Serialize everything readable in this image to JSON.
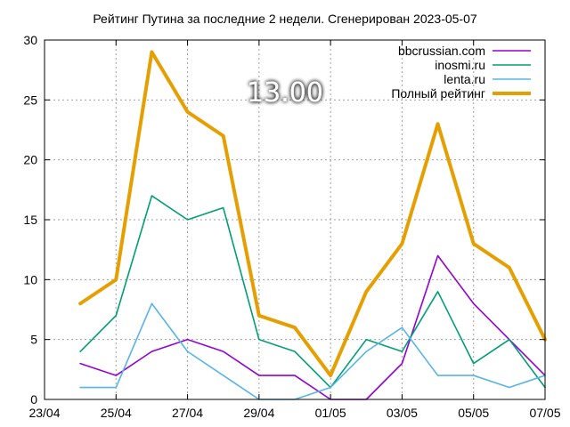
{
  "chart_data": {
    "type": "line",
    "title": "Рейтинг Путина за последние 2 недели. Сгенерирован 2023-05-07",
    "annotation": "13.00",
    "x": [
      "24/04",
      "25/04",
      "26/04",
      "27/04",
      "28/04",
      "29/04",
      "30/04",
      "01/05",
      "02/05",
      "03/05",
      "04/05",
      "05/05",
      "06/05",
      "07/05"
    ],
    "x_tick_labels": [
      "23/04",
      "25/04",
      "27/04",
      "29/04",
      "01/05",
      "03/05",
      "05/05",
      "07/05"
    ],
    "y_tick_labels": [
      "0",
      "5",
      "10",
      "15",
      "20",
      "25",
      "30"
    ],
    "ylim": [
      0,
      30
    ],
    "grid": true,
    "legend_position": "top-right",
    "series": [
      {
        "name": "bbcrussian.com",
        "color": "#9400d3",
        "values": [
          3,
          2,
          4,
          5,
          4,
          2,
          2,
          0,
          0,
          3,
          12,
          8,
          5,
          2
        ]
      },
      {
        "name": "inosmi.ru",
        "color": "#009e73",
        "values": [
          4,
          7,
          17,
          15,
          16,
          5,
          4,
          1,
          5,
          4,
          9,
          3,
          5,
          1
        ]
      },
      {
        "name": "lenta.ru",
        "color": "#56b4e9",
        "values": [
          1,
          1,
          8,
          4,
          2,
          0,
          0,
          1,
          4,
          6,
          2,
          2,
          1,
          2
        ]
      },
      {
        "name": "Полный рейтинг",
        "color": "#e69f00",
        "values": [
          8,
          10,
          29,
          24,
          22,
          7,
          6,
          2,
          9,
          13,
          23,
          13,
          11,
          5
        ]
      }
    ]
  }
}
